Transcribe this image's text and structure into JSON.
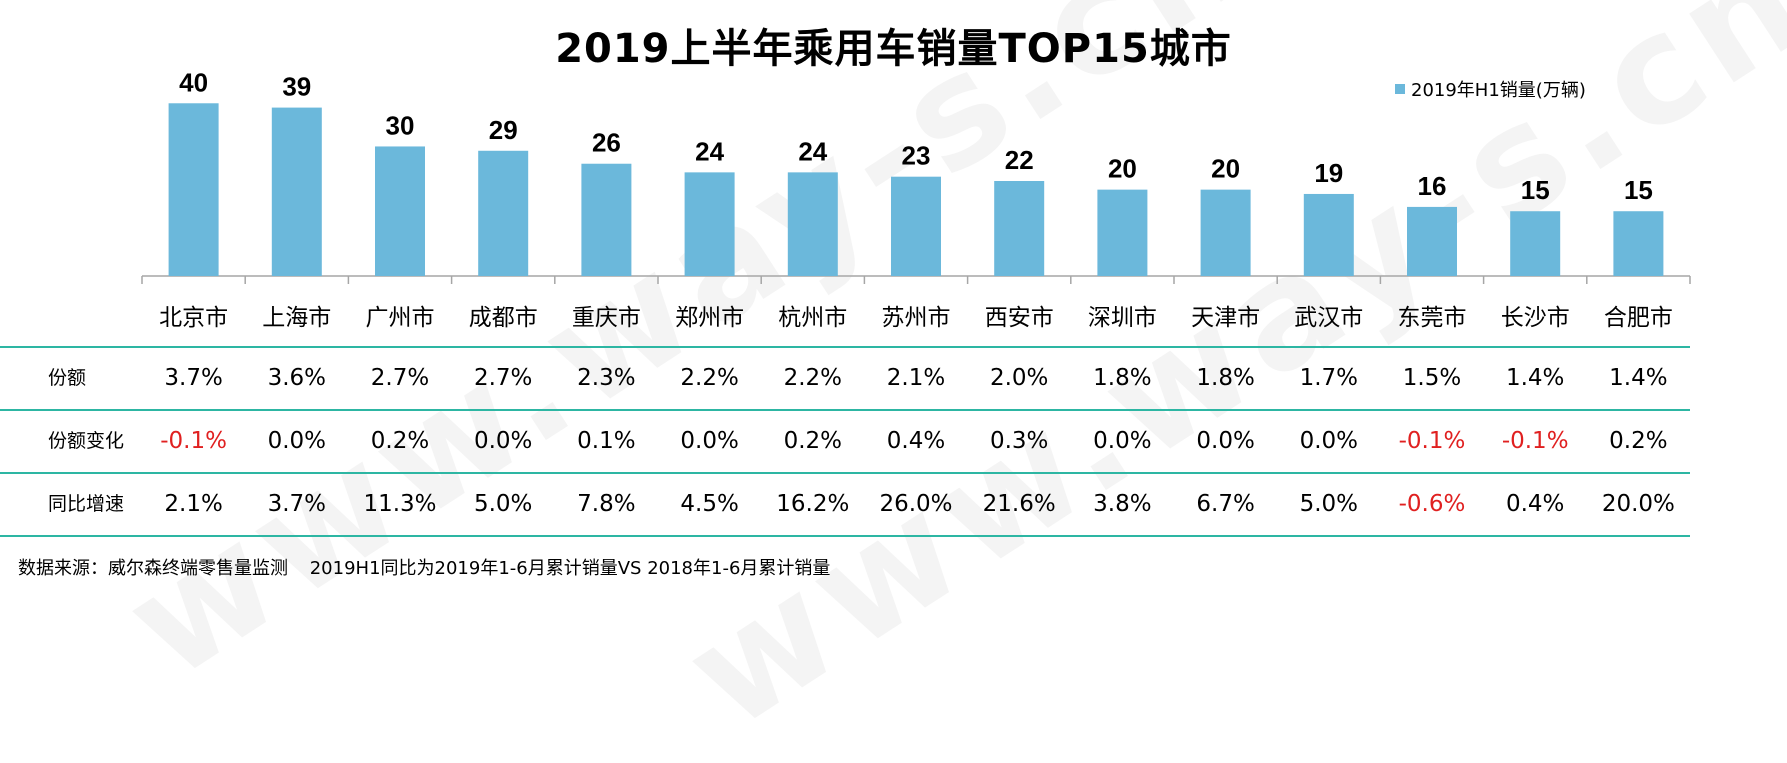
{
  "title": "2019上半年乘用车销量TOP15城市",
  "legend_label": "2019年H1销量(万辆)",
  "watermark": "www.way-s.cn",
  "colors": {
    "bar": "#6BB8DB",
    "rule": "#2DB6A3",
    "negative": "#E02020",
    "axis": "#A6A6A6"
  },
  "chart_data": {
    "type": "bar",
    "categories": [
      "北京市",
      "上海市",
      "广州市",
      "成都市",
      "重庆市",
      "郑州市",
      "杭州市",
      "苏州市",
      "西安市",
      "深圳市",
      "天津市",
      "武汉市",
      "东莞市",
      "长沙市",
      "合肥市"
    ],
    "series": [
      {
        "name": "2019年H1销量(万辆)",
        "values": [
          40,
          39,
          30,
          29,
          26,
          24,
          24,
          23,
          22,
          20,
          20,
          19,
          16,
          15,
          15
        ]
      }
    ],
    "ylim": [
      0,
      44
    ]
  },
  "table": {
    "rows": [
      {
        "label": "份额",
        "values": [
          "3.7%",
          "3.6%",
          "2.7%",
          "2.7%",
          "2.3%",
          "2.2%",
          "2.2%",
          "2.1%",
          "2.0%",
          "1.8%",
          "1.8%",
          "1.7%",
          "1.5%",
          "1.4%",
          "1.4%"
        ]
      },
      {
        "label": "份额变化",
        "values": [
          "-0.1%",
          "0.0%",
          "0.2%",
          "0.0%",
          "0.1%",
          "0.0%",
          "0.2%",
          "0.4%",
          "0.3%",
          "0.0%",
          "0.0%",
          "0.0%",
          "-0.1%",
          "-0.1%",
          "0.2%"
        ]
      },
      {
        "label": "同比增速",
        "values": [
          "2.1%",
          "3.7%",
          "11.3%",
          "5.0%",
          "7.8%",
          "4.5%",
          "16.2%",
          "26.0%",
          "21.6%",
          "3.8%",
          "6.7%",
          "5.0%",
          "-0.6%",
          "0.4%",
          "20.0%"
        ]
      }
    ]
  },
  "footnote": {
    "source": "数据来源：威尔森终端零售量监测",
    "note": "2019H1同比为2019年1-6月累计销量VS 2018年1-6月累计销量"
  }
}
